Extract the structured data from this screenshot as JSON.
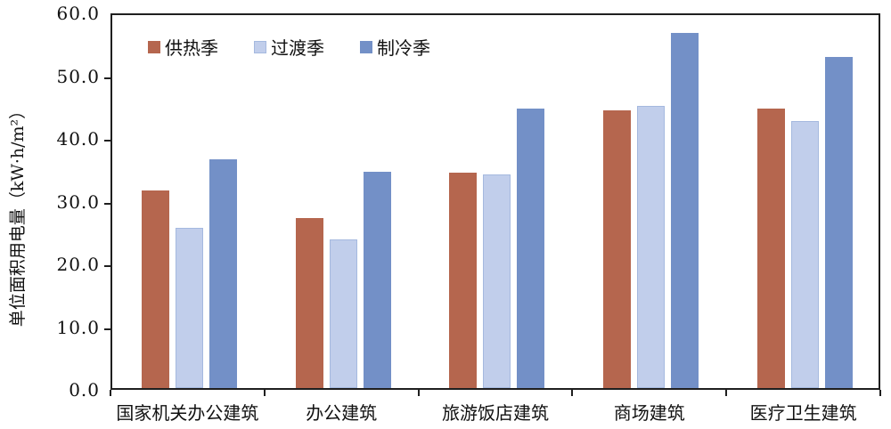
{
  "chart_data": {
    "type": "bar",
    "title": "",
    "categories": [
      "国家机关办公建筑",
      "办公建筑",
      "旅游饭店建筑",
      "商场建筑",
      "医疗卫生建筑"
    ],
    "series": [
      {
        "name": "供热季",
        "color": "#B5664E",
        "values": [
          31.5,
          27.1,
          34.3,
          44.2,
          44.5
        ]
      },
      {
        "name": "过渡季",
        "color": "#C1CEEB",
        "border_color": "#A5B9DF",
        "values": [
          25.6,
          23.7,
          34.0,
          44.9,
          42.6
        ]
      },
      {
        "name": "制冷季",
        "color": "#7390C7",
        "values": [
          36.5,
          34.4,
          44.6,
          56.6,
          52.8
        ]
      }
    ],
    "xlabel": "",
    "ylabel": "单位面积用电量（kW·h/m²）",
    "ylim": [
      0,
      60
    ],
    "ytick_step": 10,
    "ytick_labels": [
      "0.0",
      "10.0",
      "20.0",
      "30.0",
      "40.0",
      "50.0",
      "60.0"
    ],
    "grid": false,
    "legend_position": "top-inside",
    "frame_color": "#1f1f1f",
    "background_color": "#ffffff"
  }
}
